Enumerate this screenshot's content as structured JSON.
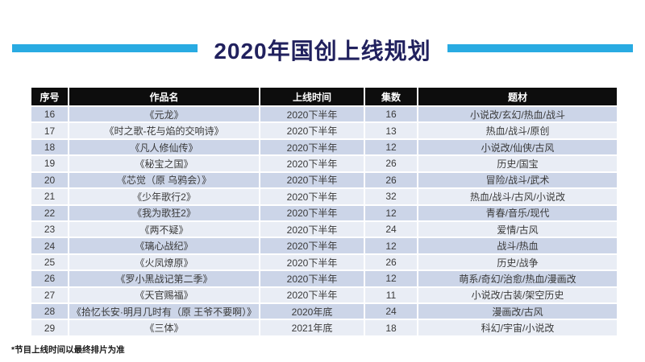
{
  "slide": {
    "title": "2020年国创上线规划",
    "footnote": "*节目上线时间以最终排片为准"
  },
  "colors": {
    "accent_bar": "#29abe2",
    "title_text": "#21215e",
    "header_bg": "#0d0d0d",
    "header_text": "#ffffff",
    "row_odd_bg": "#ccd5e8",
    "row_even_bg": "#e9edf5",
    "cell_text": "#3a3a3a"
  },
  "table": {
    "columns": [
      "序号",
      "作品名",
      "上线时间",
      "集数",
      "题材"
    ],
    "rows": [
      [
        "16",
        "《元龙》",
        "2020下半年",
        "16",
        "小说改/玄幻/热血/战斗"
      ],
      [
        "17",
        "《时之歌-花与焰的交响诗》",
        "2020下半年",
        "13",
        "热血/战斗/原创"
      ],
      [
        "18",
        "《凡人修仙传》",
        "2020下半年",
        "12",
        "小说改/仙侠/古风"
      ],
      [
        "19",
        "《秘宝之国》",
        "2020下半年",
        "26",
        "历史/国宝"
      ],
      [
        "20",
        "《芯觉（原 乌鸦会）》",
        "2020下半年",
        "26",
        "冒险/战斗/武术"
      ],
      [
        "21",
        "《少年歌行2》",
        "2020下半年",
        "32",
        "热血/战斗/古风/小说改"
      ],
      [
        "22",
        "《我为歌狂2》",
        "2020下半年",
        "12",
        "青春/音乐/现代"
      ],
      [
        "23",
        "《两不疑》",
        "2020下半年",
        "24",
        "爱情/古风"
      ],
      [
        "24",
        "《璃心战纪》",
        "2020下半年",
        "12",
        "战斗/热血"
      ],
      [
        "25",
        "《火凤燎原》",
        "2020下半年",
        "26",
        "历史/战争"
      ],
      [
        "26",
        "《罗小黑战记第二季》",
        "2020下半年",
        "12",
        "萌系/奇幻/治愈/热血/漫画改"
      ],
      [
        "27",
        "《天官赐福》",
        "2020下半年",
        "11",
        "小说改/古装/架空历史"
      ],
      [
        "28",
        "《拾忆长安·明月几时有（原 王爷不要啊）》",
        "2020年底",
        "24",
        "漫画改/古风"
      ],
      [
        "29",
        "《三体》",
        "2021年底",
        "18",
        "科幻/宇宙/小说改"
      ]
    ]
  }
}
